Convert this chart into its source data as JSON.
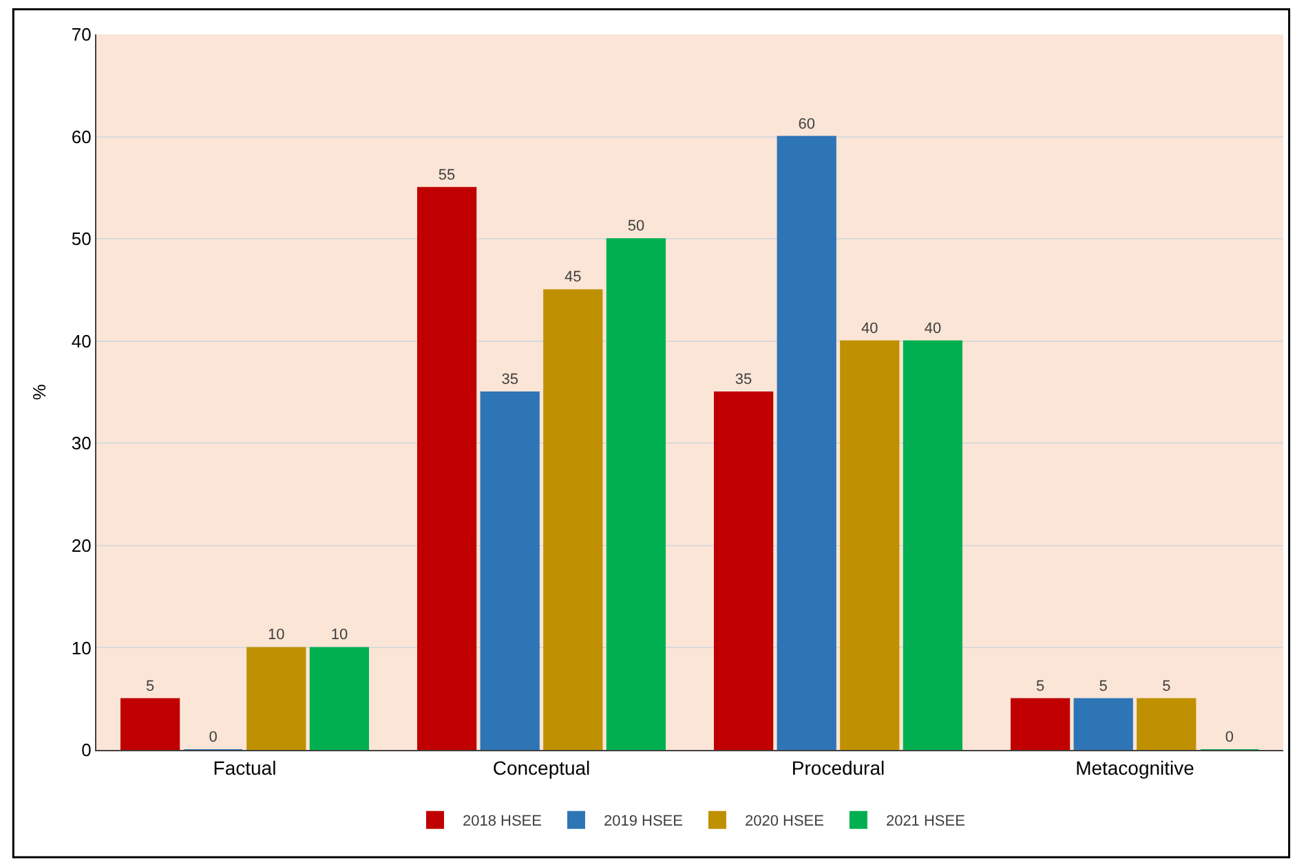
{
  "chart_data": {
    "type": "bar",
    "ylabel": "%",
    "categories": [
      "Factual",
      "Conceptual",
      "Procedural",
      "Metacognitive"
    ],
    "series": [
      {
        "name": "2018 HSEE",
        "color": "#c00000",
        "values": [
          5,
          55,
          35,
          5
        ]
      },
      {
        "name": "2019 HSEE",
        "color": "#2e75b6",
        "values": [
          0,
          35,
          60,
          5
        ]
      },
      {
        "name": "2020 HSEE",
        "color": "#bf9000",
        "values": [
          10,
          45,
          40,
          5
        ]
      },
      {
        "name": "2021 HSEE",
        "color": "#00b050",
        "values": [
          10,
          50,
          40,
          0
        ]
      }
    ],
    "ylim": [
      0,
      70
    ],
    "yticks": [
      0,
      10,
      20,
      30,
      40,
      50,
      60,
      70
    ],
    "grid": "y",
    "legend": "bottom",
    "data_labels": true
  }
}
